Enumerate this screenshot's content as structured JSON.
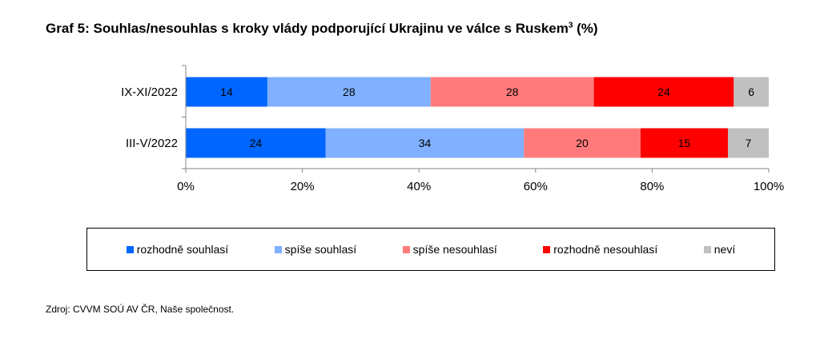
{
  "title": {
    "text": "Graf 5: Souhlas/nesouhlas s kroky vlády podporující Ukrajinu ve válce s Ruskem",
    "superscript": "3",
    "suffix": " (%)"
  },
  "source": "Zdroj: CVVM SOÚ AV ČR, Naše společnost.",
  "chart_data": {
    "type": "bar",
    "orientation": "horizontal",
    "stacked": true,
    "title": "Graf 5: Souhlas/nesouhlas s kroky vlády podporující Ukrajinu ve válce s Ruskem3 (%)",
    "xlim": [
      0,
      100
    ],
    "x_ticks": [
      "0%",
      "20%",
      "40%",
      "60%",
      "80%",
      "100%"
    ],
    "grid": false,
    "legend_position": "bottom",
    "categories": [
      "IX-XI/2022",
      "III-V/2022"
    ],
    "series": [
      {
        "name": "rozhodně souhlasí",
        "color": "#0066ff",
        "values": [
          14,
          24
        ]
      },
      {
        "name": "spíše souhlasí",
        "color": "#80b0ff",
        "values": [
          28,
          34
        ]
      },
      {
        "name": "spíše nesouhlasí",
        "color": "#ff7b7b",
        "values": [
          28,
          20
        ]
      },
      {
        "name": "rozhodně nesouhlasí",
        "color": "#ff0000",
        "values": [
          24,
          15
        ]
      },
      {
        "name": "neví",
        "color": "#c0c0c0",
        "values": [
          6,
          7
        ]
      }
    ]
  }
}
